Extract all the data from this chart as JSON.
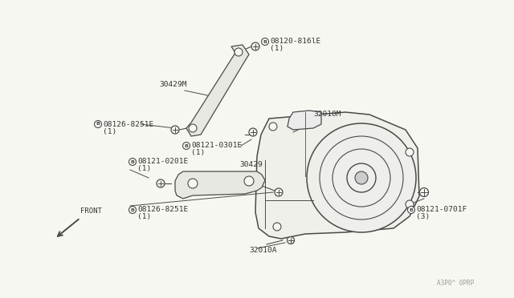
{
  "bg_color": "#f7f7f2",
  "line_color": "#4a4a4a",
  "text_color": "#333333",
  "fig_width": 6.4,
  "fig_height": 3.72,
  "watermark": "A3P0^ 0PRP",
  "labels": {
    "bolt_top": {
      "text": "B08120-816lE",
      "sub": "(1)"
    },
    "bolt_upper": {
      "text": "B08126-8251E",
      "sub": "(1)"
    },
    "bolt_mid": {
      "text": "B08121-0301E",
      "sub": "(1)"
    },
    "bolt_lb1": {
      "text": "B08121-0201E",
      "sub": "(1)"
    },
    "bolt_lb2": {
      "text": "B08126-8251E",
      "sub": "(1)"
    },
    "bolt_right": {
      "text": "B08121-0701F",
      "sub": "(3)"
    },
    "bracket_up": "30429M",
    "bracket_lo": "30429",
    "trans": "32010M",
    "adapter": "32010A"
  }
}
